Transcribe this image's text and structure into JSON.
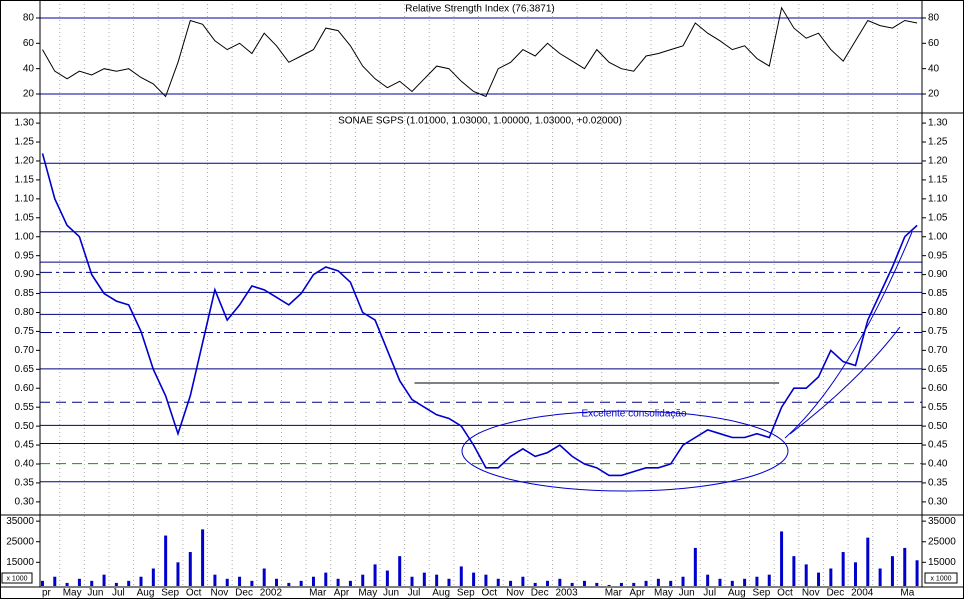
{
  "chart_data": [
    {
      "type": "line",
      "title": "Relative Strength Index (76.3871)",
      "color": "#000000",
      "values": [
        55,
        38,
        32,
        38,
        35,
        40,
        38,
        40,
        33,
        28,
        18,
        45,
        78,
        75,
        62,
        55,
        60,
        52,
        68,
        58,
        45,
        50,
        55,
        72,
        70,
        58,
        42,
        32,
        25,
        30,
        22,
        32,
        42,
        40,
        30,
        22,
        18,
        40,
        45,
        55,
        50,
        60,
        52,
        46,
        40,
        55,
        45,
        40,
        38,
        50,
        52,
        55,
        58,
        76,
        68,
        62,
        55,
        58,
        48,
        42,
        88,
        72,
        64,
        68,
        55,
        46,
        62,
        78,
        74,
        72,
        78,
        76
      ],
      "ylim": [
        5.8,
        92.6
      ],
      "yticks": [
        20,
        40,
        60,
        80
      ],
      "hlines": [
        {
          "value": 20,
          "style": "solid",
          "color": "#0000a0"
        },
        {
          "value": 80,
          "style": "solid",
          "color": "#0000a0"
        }
      ]
    },
    {
      "type": "line",
      "title": "SONAE SGPS (1.01000, 1.03000, 1.00000, 1.03000, +0.02000)",
      "color": "#0000cc",
      "values": [
        1.22,
        1.1,
        1.03,
        1.0,
        0.9,
        0.85,
        0.83,
        0.82,
        0.75,
        0.65,
        0.58,
        0.48,
        0.58,
        0.72,
        0.86,
        0.78,
        0.82,
        0.87,
        0.86,
        0.84,
        0.82,
        0.85,
        0.9,
        0.92,
        0.91,
        0.88,
        0.8,
        0.78,
        0.7,
        0.62,
        0.57,
        0.55,
        0.53,
        0.52,
        0.5,
        0.45,
        0.39,
        0.39,
        0.42,
        0.44,
        0.42,
        0.43,
        0.45,
        0.42,
        0.4,
        0.39,
        0.37,
        0.37,
        0.38,
        0.39,
        0.39,
        0.4,
        0.45,
        0.47,
        0.49,
        0.48,
        0.47,
        0.47,
        0.48,
        0.47,
        0.55,
        0.6,
        0.6,
        0.63,
        0.7,
        0.67,
        0.66,
        0.78,
        0.85,
        0.92,
        1.0,
        1.03
      ],
      "ylim": [
        0.268,
        1.324
      ],
      "yticks": [
        {
          "value": 0.3,
          "label": "0.30"
        },
        {
          "value": 0.35,
          "label": "0.35"
        },
        {
          "value": 0.4,
          "label": "0.40"
        },
        {
          "value": 0.45,
          "label": "0.45"
        },
        {
          "value": 0.5,
          "label": "0.50"
        },
        {
          "value": 0.55,
          "label": "0.55"
        },
        {
          "value": 0.6,
          "label": "0.60"
        },
        {
          "value": 0.65,
          "label": "0.65"
        },
        {
          "value": 0.7,
          "label": "0.70"
        },
        {
          "value": 0.75,
          "label": "0.75"
        },
        {
          "value": 0.8,
          "label": "0.80"
        },
        {
          "value": 0.85,
          "label": "0.85"
        },
        {
          "value": 0.9,
          "label": "0.90"
        },
        {
          "value": 0.95,
          "label": "0.95"
        },
        {
          "value": 1.0,
          "label": "1.00"
        },
        {
          "value": 1.05,
          "label": "1.05"
        },
        {
          "value": 1.1,
          "label": "1.10"
        },
        {
          "value": 1.15,
          "label": "1.15"
        },
        {
          "value": 1.2,
          "label": "1.20"
        },
        {
          "value": 1.25,
          "label": "1.25"
        },
        {
          "value": 1.3,
          "label": "1.30"
        }
      ],
      "hlines": [
        {
          "value": 1.194,
          "style": "solid",
          "color": "#000080"
        },
        {
          "value": 1.013,
          "style": "solid",
          "color": "#000080"
        },
        {
          "value": 0.933,
          "style": "solid",
          "color": "#000080"
        },
        {
          "value": 0.906,
          "style": "dashdot",
          "color": "#000080"
        },
        {
          "value": 0.853,
          "style": "solid",
          "color": "#000080"
        },
        {
          "value": 0.795,
          "style": "solid",
          "color": "#000080"
        },
        {
          "value": 0.747,
          "style": "dashdot",
          "color": "#000080"
        },
        {
          "value": 0.651,
          "style": "solid",
          "color": "#000080"
        },
        {
          "value": 0.614,
          "style": "solid",
          "color": "#000000",
          "xrange": [
            15.4,
            30.2
          ]
        },
        {
          "value": 0.563,
          "style": "dashed",
          "color": "#000080"
        },
        {
          "value": 0.502,
          "style": "solid",
          "color": "#000080"
        },
        {
          "value": 0.454,
          "style": "solid",
          "color": "#000080"
        },
        {
          "value": 0.401,
          "style": "dashed",
          "color": "#00a000"
        },
        {
          "value": 0.353,
          "style": "solid",
          "color": "#000080"
        }
      ],
      "annotation": "Excelente consolidação"
    },
    {
      "type": "bar",
      "color": "#0000cc",
      "values": [
        6000,
        8000,
        5000,
        7000,
        6000,
        9000,
        5000,
        6000,
        8000,
        12000,
        28000,
        15000,
        20000,
        31000,
        9000,
        7000,
        8000,
        6000,
        12000,
        7000,
        5000,
        6000,
        8000,
        10000,
        7000,
        6000,
        9000,
        14000,
        11000,
        18000,
        8000,
        10000,
        9000,
        7000,
        13000,
        10000,
        9000,
        7000,
        6000,
        8000,
        5000,
        6000,
        7000,
        5000,
        6000,
        5000,
        4000,
        5000,
        5000,
        6000,
        7000,
        6000,
        8000,
        22000,
        9000,
        7000,
        6000,
        7000,
        8000,
        9000,
        30000,
        18000,
        14000,
        10000,
        12000,
        20000,
        15000,
        27000,
        12000,
        18000,
        22000,
        16000
      ],
      "ylim": [
        3500,
        37500
      ],
      "yticks": [
        15000,
        25000,
        35000
      ],
      "unit_label": "x 1000",
      "x": [
        0.3,
        0.8,
        1.3,
        1.8,
        2.3,
        2.8,
        3.3,
        3.8,
        4.3,
        4.8,
        5.3,
        5.8,
        6.3,
        6.8,
        7.3,
        7.8,
        8.3,
        8.8,
        9.3,
        9.8,
        10.3,
        10.8,
        11.3,
        11.8,
        12.3,
        12.8,
        13.3,
        13.8,
        14.3,
        14.8,
        15.3,
        15.8,
        16.3,
        16.8,
        17.3,
        17.8,
        18.3,
        18.8,
        19.3,
        19.8,
        20.3,
        20.8,
        21.3,
        21.8,
        22.3,
        22.8,
        23.3,
        23.8,
        24.3,
        24.8,
        25.3,
        25.8,
        26.3,
        26.8,
        27.3,
        27.8,
        28.3,
        28.8,
        29.3,
        29.8,
        30.3,
        30.8,
        31.3,
        31.8,
        32.3,
        32.8,
        33.3,
        33.8,
        34.3,
        34.8,
        35.3,
        35.8
      ],
      "xlim": [
        0.2,
        36
      ],
      "categories": [
        "pr",
        "May",
        "Jun",
        "Jul",
        "Aug",
        "Sep",
        "Oct",
        "Nov",
        "Dec",
        "2002",
        null,
        "Mar",
        "Apr",
        "May",
        "Jun",
        "Jul",
        "Aug",
        "Sep",
        "Oct",
        "Nov",
        "Dec",
        "2003",
        null,
        "Mar",
        "Apr",
        "May",
        "Jun",
        "Jul",
        "Aug",
        "Sep",
        "Oct",
        "Nov",
        "Dec",
        "2004",
        null,
        "Ma"
      ]
    }
  ]
}
